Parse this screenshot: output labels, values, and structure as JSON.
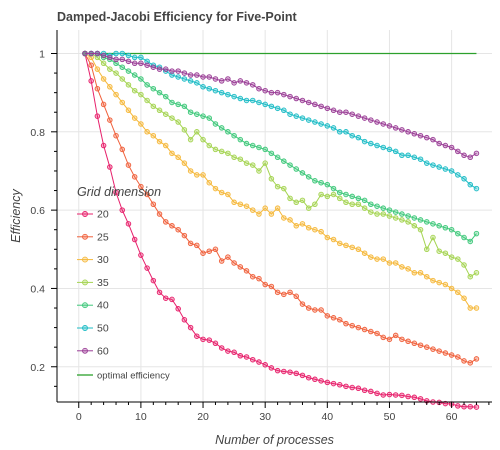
{
  "chart_data": {
    "type": "line",
    "title": "Damped-Jacobi Efficiency for Five-Point",
    "xlabel": "Number of processes",
    "ylabel": "Efficiency",
    "xlim": [
      -3.5,
      66.5
    ],
    "ylim": [
      0.11,
      1.06
    ],
    "x_ticks": [
      0,
      10,
      20,
      30,
      40,
      50,
      60
    ],
    "y_ticks": [
      0.2,
      0.4,
      0.6,
      0.8,
      1
    ],
    "y_tick_labels": [
      "0.2",
      "0.4",
      "0.6",
      "0.8",
      "1"
    ],
    "grid": true,
    "legend_title": "Grid dimension",
    "legend_placement": "center-left",
    "x": [
      1,
      2,
      3,
      4,
      5,
      6,
      7,
      8,
      9,
      10,
      11,
      12,
      13,
      14,
      15,
      16,
      17,
      18,
      19,
      20,
      21,
      22,
      23,
      24,
      25,
      26,
      27,
      28,
      29,
      30,
      31,
      32,
      33,
      34,
      35,
      36,
      37,
      38,
      39,
      40,
      41,
      42,
      43,
      44,
      45,
      46,
      47,
      48,
      49,
      50,
      51,
      52,
      53,
      54,
      55,
      56,
      57,
      58,
      59,
      60,
      61,
      62,
      63,
      64
    ],
    "series": [
      {
        "name": "20",
        "color": "#e7206b",
        "values": [
          1.0,
          0.93,
          0.84,
          0.765,
          0.71,
          0.645,
          0.6,
          0.565,
          0.525,
          0.485,
          0.452,
          0.42,
          0.39,
          0.375,
          0.372,
          0.348,
          0.32,
          0.3,
          0.278,
          0.27,
          0.268,
          0.26,
          0.248,
          0.24,
          0.237,
          0.228,
          0.225,
          0.218,
          0.212,
          0.205,
          0.197,
          0.19,
          0.188,
          0.186,
          0.183,
          0.178,
          0.172,
          0.168,
          0.164,
          0.16,
          0.157,
          0.154,
          0.15,
          0.147,
          0.145,
          0.14,
          0.137,
          0.132,
          0.128,
          0.129,
          0.128,
          0.127,
          0.124,
          0.122,
          0.118,
          0.113,
          0.11,
          0.109,
          0.106,
          0.105,
          0.1,
          0.098,
          0.098,
          0.097
        ]
      },
      {
        "name": "25",
        "color": "#f0603b",
        "values": [
          1.0,
          0.97,
          0.91,
          0.87,
          0.83,
          0.79,
          0.755,
          0.715,
          0.685,
          0.66,
          0.64,
          0.615,
          0.59,
          0.57,
          0.56,
          0.55,
          0.535,
          0.515,
          0.51,
          0.49,
          0.495,
          0.5,
          0.47,
          0.48,
          0.465,
          0.455,
          0.445,
          0.43,
          0.425,
          0.41,
          0.405,
          0.39,
          0.385,
          0.39,
          0.38,
          0.36,
          0.35,
          0.345,
          0.345,
          0.33,
          0.325,
          0.32,
          0.31,
          0.305,
          0.3,
          0.295,
          0.29,
          0.285,
          0.275,
          0.27,
          0.28,
          0.27,
          0.265,
          0.26,
          0.255,
          0.25,
          0.245,
          0.24,
          0.235,
          0.23,
          0.225,
          0.215,
          0.21,
          0.22
        ]
      },
      {
        "name": "30",
        "color": "#f5b83a",
        "values": [
          1.0,
          0.99,
          0.96,
          0.935,
          0.915,
          0.895,
          0.875,
          0.855,
          0.835,
          0.82,
          0.8,
          0.79,
          0.775,
          0.765,
          0.745,
          0.735,
          0.72,
          0.7,
          0.69,
          0.69,
          0.67,
          0.655,
          0.645,
          0.64,
          0.62,
          0.615,
          0.61,
          0.6,
          0.59,
          0.605,
          0.59,
          0.605,
          0.58,
          0.575,
          0.56,
          0.565,
          0.555,
          0.55,
          0.545,
          0.53,
          0.525,
          0.515,
          0.51,
          0.505,
          0.5,
          0.49,
          0.48,
          0.475,
          0.475,
          0.465,
          0.465,
          0.455,
          0.45,
          0.44,
          0.44,
          0.43,
          0.42,
          0.415,
          0.41,
          0.4,
          0.39,
          0.375,
          0.35,
          0.35
        ]
      },
      {
        "name": "35",
        "color": "#a5d452",
        "values": [
          1.0,
          1.0,
          0.99,
          0.975,
          0.96,
          0.95,
          0.935,
          0.92,
          0.905,
          0.895,
          0.88,
          0.865,
          0.855,
          0.845,
          0.835,
          0.825,
          0.805,
          0.78,
          0.8,
          0.78,
          0.765,
          0.755,
          0.75,
          0.745,
          0.735,
          0.73,
          0.72,
          0.715,
          0.7,
          0.72,
          0.68,
          0.66,
          0.655,
          0.63,
          0.62,
          0.625,
          0.605,
          0.615,
          0.64,
          0.635,
          0.64,
          0.63,
          0.62,
          0.615,
          0.615,
          0.605,
          0.595,
          0.59,
          0.59,
          0.585,
          0.58,
          0.575,
          0.57,
          0.56,
          0.55,
          0.5,
          0.53,
          0.495,
          0.49,
          0.48,
          0.475,
          0.46,
          0.43,
          0.44
        ]
      },
      {
        "name": "40",
        "color": "#3ec87a",
        "values": [
          1.0,
          1.0,
          1.0,
          0.99,
          0.985,
          0.975,
          0.965,
          0.955,
          0.945,
          0.935,
          0.92,
          0.91,
          0.9,
          0.89,
          0.875,
          0.87,
          0.865,
          0.85,
          0.845,
          0.84,
          0.835,
          0.82,
          0.81,
          0.8,
          0.79,
          0.78,
          0.77,
          0.765,
          0.76,
          0.755,
          0.745,
          0.735,
          0.725,
          0.715,
          0.705,
          0.695,
          0.685,
          0.675,
          0.67,
          0.665,
          0.655,
          0.645,
          0.64,
          0.635,
          0.63,
          0.625,
          0.615,
          0.61,
          0.605,
          0.6,
          0.595,
          0.59,
          0.585,
          0.58,
          0.575,
          0.57,
          0.565,
          0.56,
          0.555,
          0.55,
          0.54,
          0.53,
          0.52,
          0.54
        ]
      },
      {
        "name": "50",
        "color": "#1ebcc6",
        "values": [
          1.0,
          1.0,
          1.0,
          1.0,
          0.995,
          1.0,
          1.0,
          0.995,
          0.99,
          0.99,
          0.98,
          0.97,
          0.965,
          0.955,
          0.945,
          0.94,
          0.935,
          0.93,
          0.925,
          0.915,
          0.91,
          0.905,
          0.9,
          0.895,
          0.89,
          0.885,
          0.88,
          0.88,
          0.875,
          0.87,
          0.865,
          0.86,
          0.855,
          0.845,
          0.84,
          0.835,
          0.83,
          0.825,
          0.82,
          0.815,
          0.81,
          0.8,
          0.8,
          0.79,
          0.785,
          0.775,
          0.77,
          0.765,
          0.76,
          0.755,
          0.75,
          0.74,
          0.74,
          0.735,
          0.73,
          0.72,
          0.715,
          0.71,
          0.705,
          0.7,
          0.69,
          0.68,
          0.665,
          0.655
        ]
      },
      {
        "name": "60",
        "color": "#9a3d96",
        "values": [
          1.0,
          1.0,
          1.0,
          0.995,
          0.99,
          0.985,
          0.985,
          0.98,
          0.975,
          0.975,
          0.97,
          0.965,
          0.96,
          0.96,
          0.955,
          0.955,
          0.95,
          0.945,
          0.945,
          0.94,
          0.94,
          0.935,
          0.93,
          0.935,
          0.925,
          0.93,
          0.925,
          0.92,
          0.91,
          0.905,
          0.9,
          0.9,
          0.895,
          0.89,
          0.885,
          0.88,
          0.875,
          0.87,
          0.865,
          0.86,
          0.855,
          0.85,
          0.85,
          0.845,
          0.84,
          0.835,
          0.83,
          0.825,
          0.82,
          0.815,
          0.81,
          0.805,
          0.8,
          0.795,
          0.79,
          0.785,
          0.78,
          0.77,
          0.765,
          0.76,
          0.75,
          0.74,
          0.735,
          0.745
        ]
      }
    ],
    "reference_line": {
      "name": "optimal efficiency",
      "color": "#2ca02c",
      "x": [
        1,
        64
      ],
      "values": [
        1,
        1
      ]
    }
  }
}
